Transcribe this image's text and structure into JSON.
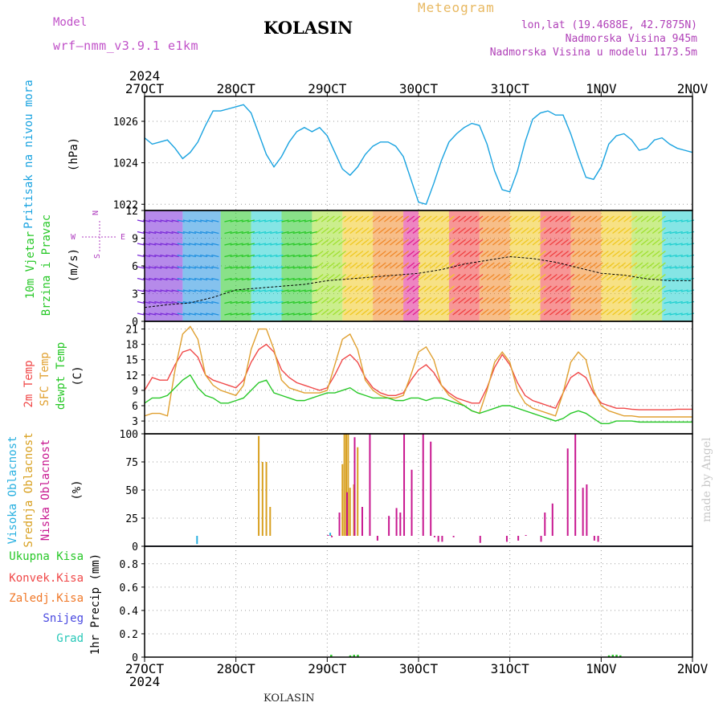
{
  "header": {
    "model_label": "Model",
    "model_name": "wrf–nmm_v3.9.1  e1km",
    "title": "KOLASIN",
    "meteogram_label": "Meteogram",
    "lonlat": "lon,lat (19.4688E, 42.7875N)",
    "elevation": "Nadmorska Visina 945m",
    "model_elevation": "Nadmorska Visina u modelu 1173.5m"
  },
  "footer": {
    "station": "KOLASIN"
  },
  "watermark": "made by Angel",
  "colors": {
    "pressure": "#1aa3e0",
    "temp2m": "#f04848",
    "sfc_temp": "#e0a030",
    "dewpoint": "#28c828",
    "high_cloud": "#28b0e0",
    "mid_cloud": "#d8a020",
    "low_cloud": "#c81890",
    "precip_total": "#28c828"
  },
  "chart_data": [
    {
      "type": "line",
      "panel": "pressure",
      "ylabel_left": "Pritisak na nivou mora",
      "ylabel_unit": "(hPa)",
      "y_ticks": [
        "1026",
        "1024",
        "1022"
      ],
      "ylim": [
        1021.7,
        1027.2
      ],
      "x_year": "2024",
      "x_ticks": [
        "27OCT",
        "28OCT",
        "29OCT",
        "30OCT",
        "31OCT",
        "1NOV",
        "2NOV"
      ],
      "x_range_hours": [
        0,
        144
      ],
      "grid": true,
      "series": [
        {
          "x": [
            0,
            2,
            4,
            6,
            8,
            10,
            12,
            14,
            16,
            18,
            20,
            22,
            24,
            26,
            28,
            30,
            32,
            34,
            36,
            38,
            40,
            42,
            44,
            46,
            48,
            50,
            52,
            54,
            56,
            58,
            60,
            62,
            64,
            66,
            68,
            70,
            72,
            74,
            76,
            78,
            80,
            82,
            84,
            86,
            88,
            90,
            92,
            94,
            96,
            98,
            100,
            102,
            104,
            106,
            108,
            110,
            112,
            114,
            116,
            118,
            120,
            122,
            124,
            126,
            128,
            130,
            132,
            134,
            136,
            138,
            140,
            142,
            144
          ],
          "values": [
            1025.2,
            1024.9,
            1025.0,
            1025.1,
            1024.7,
            1024.2,
            1024.5,
            1025.0,
            1025.8,
            1026.5,
            1026.5,
            1026.6,
            1026.7,
            1026.8,
            1026.4,
            1025.4,
            1024.4,
            1023.8,
            1024.3,
            1025.0,
            1025.5,
            1025.7,
            1025.5,
            1025.7,
            1025.3,
            1024.5,
            1023.7,
            1023.4,
            1023.8,
            1024.4,
            1024.8,
            1025.0,
            1025.0,
            1024.8,
            1024.3,
            1023.2,
            1022.1,
            1022.0,
            1023.0,
            1024.1,
            1025.0,
            1025.4,
            1025.7,
            1025.9,
            1025.8,
            1024.9,
            1023.6,
            1022.7,
            1022.6,
            1023.6,
            1025.0,
            1026.1,
            1026.4,
            1026.5,
            1026.3,
            1026.3,
            1025.4,
            1024.3,
            1023.3,
            1023.2,
            1023.8,
            1024.9,
            1025.3,
            1025.4,
            1025.1,
            1024.6,
            1024.7,
            1025.1,
            1025.2,
            1024.9,
            1024.7,
            1024.6,
            1024.5
          ]
        }
      ]
    },
    {
      "type": "line",
      "panel": "wind",
      "ylabel_left": [
        "10m Vjetar",
        "Brzina i Pravac"
      ],
      "ylabel_unit": "(m/s)",
      "compass_labels": [
        "N",
        "W",
        "E",
        "S"
      ],
      "y_ticks": [
        "12",
        "9",
        "6",
        "3",
        "0"
      ],
      "ylim": [
        0,
        12
      ],
      "grid": true,
      "series": [
        {
          "name": "speed",
          "x": [
            0,
            6,
            12,
            18,
            24,
            30,
            36,
            42,
            48,
            54,
            60,
            66,
            72,
            78,
            84,
            90,
            96,
            102,
            108,
            114,
            120,
            126,
            132,
            138,
            144
          ],
          "values": [
            1.5,
            1.8,
            2.0,
            2.6,
            3.4,
            3.6,
            3.8,
            4.0,
            4.4,
            4.6,
            4.8,
            5.0,
            5.2,
            5.6,
            6.2,
            6.6,
            7.0,
            6.8,
            6.4,
            5.8,
            5.2,
            5.0,
            4.6,
            4.4,
            4.4
          ]
        }
      ],
      "direction_bands": {
        "colors": [
          "#7a2ad8",
          "#2090e0",
          "#20d0d0",
          "#28c828",
          "#a0e030",
          "#f0c820",
          "#f08828",
          "#f04040",
          "#e02090"
        ]
      }
    },
    {
      "type": "line",
      "panel": "temperature",
      "ylabel_left": [
        "2m Temp",
        "SFC Temp",
        "dewpt Temp"
      ],
      "ylabel_unit": "(C)",
      "y_ticks": [
        "21",
        "18",
        "15",
        "12",
        "9",
        "6",
        "3"
      ],
      "ylim": [
        0.5,
        22.5
      ],
      "grid": true,
      "series": [
        {
          "name": "2m Temp",
          "x": [
            0,
            2,
            4,
            6,
            8,
            10,
            12,
            14,
            16,
            18,
            20,
            22,
            24,
            26,
            28,
            30,
            32,
            34,
            36,
            38,
            40,
            42,
            44,
            46,
            48,
            50,
            52,
            54,
            56,
            58,
            60,
            62,
            64,
            66,
            68,
            70,
            72,
            74,
            76,
            78,
            80,
            82,
            84,
            86,
            88,
            90,
            92,
            94,
            96,
            98,
            100,
            102,
            104,
            106,
            108,
            110,
            112,
            114,
            116,
            118,
            120,
            122,
            124,
            126,
            128,
            130,
            132,
            134,
            136,
            138,
            140,
            142,
            144
          ],
          "values": [
            9.0,
            11.5,
            11.0,
            11.0,
            14.0,
            16.5,
            17.0,
            15.5,
            12.0,
            11.0,
            10.5,
            10.0,
            9.5,
            11.0,
            14.5,
            17.0,
            18.0,
            16.5,
            13.0,
            11.5,
            10.5,
            10.0,
            9.5,
            9.0,
            9.5,
            12.0,
            15.0,
            16.0,
            14.5,
            11.5,
            9.5,
            8.5,
            8.0,
            8.0,
            8.5,
            11.0,
            13.0,
            14.0,
            12.5,
            10.0,
            8.5,
            7.5,
            7.0,
            6.5,
            6.5,
            9.5,
            13.5,
            16.0,
            14.0,
            10.5,
            8.0,
            7.0,
            6.5,
            6.0,
            5.5,
            8.5,
            11.5,
            12.5,
            11.5,
            8.5,
            6.5,
            6.0,
            5.5,
            5.5,
            5.3,
            5.2,
            5.2,
            5.2,
            5.2,
            5.2,
            5.3,
            5.3,
            5.3
          ]
        },
        {
          "name": "SFC Temp",
          "x": [
            0,
            2,
            4,
            6,
            8,
            10,
            12,
            14,
            16,
            18,
            20,
            22,
            24,
            26,
            28,
            30,
            32,
            34,
            36,
            38,
            40,
            42,
            44,
            46,
            48,
            50,
            52,
            54,
            56,
            58,
            60,
            62,
            64,
            66,
            68,
            70,
            72,
            74,
            76,
            78,
            80,
            82,
            84,
            86,
            88,
            90,
            92,
            94,
            96,
            98,
            100,
            102,
            104,
            106,
            108,
            110,
            112,
            114,
            116,
            118,
            120,
            122,
            124,
            126,
            128,
            130,
            132,
            134,
            136,
            138,
            140,
            142,
            144
          ],
          "values": [
            4.0,
            4.5,
            4.5,
            4.0,
            13.0,
            20.0,
            21.5,
            19.0,
            12.0,
            10.0,
            9.0,
            8.5,
            8.0,
            10.0,
            17.0,
            21.0,
            21.0,
            17.0,
            11.0,
            9.5,
            9.0,
            8.5,
            8.5,
            8.5,
            9.0,
            14.0,
            19.0,
            20.0,
            17.0,
            11.0,
            9.0,
            8.0,
            7.5,
            7.5,
            8.0,
            12.0,
            16.5,
            17.5,
            15.0,
            10.0,
            8.0,
            7.0,
            6.0,
            5.0,
            4.5,
            9.0,
            14.5,
            16.5,
            14.5,
            9.0,
            6.5,
            5.5,
            5.0,
            4.5,
            4.0,
            8.5,
            14.5,
            16.5,
            15.0,
            9.0,
            6.0,
            5.0,
            4.5,
            4.0,
            4.0,
            3.8,
            3.8,
            3.8,
            3.8,
            3.8,
            3.8,
            3.8,
            3.8
          ]
        },
        {
          "name": "dewpt Temp",
          "x": [
            0,
            2,
            4,
            6,
            8,
            10,
            12,
            14,
            16,
            18,
            20,
            22,
            24,
            26,
            28,
            30,
            32,
            34,
            36,
            38,
            40,
            42,
            44,
            46,
            48,
            50,
            52,
            54,
            56,
            58,
            60,
            62,
            64,
            66,
            68,
            70,
            72,
            74,
            76,
            78,
            80,
            82,
            84,
            86,
            88,
            90,
            92,
            94,
            96,
            98,
            100,
            102,
            104,
            106,
            108,
            110,
            112,
            114,
            116,
            118,
            120,
            122,
            124,
            126,
            128,
            130,
            132,
            134,
            136,
            138,
            140,
            142,
            144
          ],
          "values": [
            6.5,
            7.5,
            7.5,
            8.0,
            9.5,
            11.0,
            12.0,
            9.5,
            8.0,
            7.5,
            6.5,
            6.5,
            7.0,
            7.5,
            9.0,
            10.5,
            11.0,
            8.5,
            8.0,
            7.5,
            7.0,
            7.0,
            7.5,
            8.0,
            8.5,
            8.5,
            9.0,
            9.5,
            8.5,
            8.0,
            7.5,
            7.5,
            7.5,
            7.0,
            7.0,
            7.5,
            7.5,
            7.0,
            7.5,
            7.5,
            7.0,
            6.5,
            6.0,
            5.0,
            4.5,
            5.0,
            5.5,
            6.0,
            6.0,
            5.5,
            5.0,
            4.5,
            4.0,
            3.5,
            3.0,
            3.5,
            4.5,
            5.0,
            4.5,
            3.5,
            2.5,
            2.5,
            3.0,
            3.0,
            3.0,
            2.8,
            2.8,
            2.8,
            2.8,
            2.8,
            2.8,
            2.8,
            2.8
          ]
        }
      ]
    },
    {
      "type": "bar",
      "panel": "cloud",
      "ylabel_left": [
        "Visoka Oblacnost",
        "Srednja Oblacnost",
        "Niska Oblacnost"
      ],
      "ylabel_unit": "(%)",
      "y_ticks": [
        "100",
        "75",
        "50",
        "25",
        "0"
      ],
      "ylim": [
        0,
        100
      ],
      "grid": true,
      "series": [
        {
          "name": "Srednja Oblacnost",
          "x": [
            30,
            31,
            32,
            33,
            49,
            52,
            52.5,
            53,
            53.5,
            54,
            55,
            56
          ],
          "values": [
            98,
            75,
            75,
            35,
            10,
            73,
            100,
            100,
            100,
            52,
            55,
            88
          ]
        },
        {
          "name": "Niska Oblacnost",
          "x": [
            48,
            49,
            51,
            53,
            55,
            57,
            59,
            61,
            64,
            66,
            67,
            68,
            70,
            73,
            75,
            76,
            77,
            78,
            81,
            88,
            95,
            98,
            100,
            104,
            105,
            107,
            111,
            113,
            115,
            116,
            118,
            119
          ],
          "values": [
            10,
            8,
            30,
            48,
            97,
            35,
            100,
            5,
            27,
            34,
            30,
            100,
            68,
            100,
            93,
            8,
            4,
            4,
            8,
            3,
            4,
            5,
            10,
            4,
            30,
            38,
            87,
            100,
            52,
            55,
            5,
            4
          ]
        },
        {
          "name": "Visoka Oblacnost",
          "x": [
            14,
            49
          ],
          "values": [
            2,
            12
          ]
        }
      ]
    },
    {
      "type": "bar",
      "panel": "precip",
      "ylabel_left": [
        "Ukupna Kisa",
        "Konvek.Kisa",
        "Zaledj.Kisa",
        "Snijeg",
        "Grad"
      ],
      "ylabel_unit": "1hr Precip (mm)",
      "y_ticks": [
        "0.8",
        "0.6",
        "0.4",
        "0.2",
        "0"
      ],
      "ylim": [
        0,
        0.95
      ],
      "grid": true,
      "series": [
        {
          "name": "Ukupna Kisa",
          "x": [
            49,
            54,
            55,
            56,
            122,
            123,
            124,
            125
          ],
          "values": [
            0.02,
            0.015,
            0.02,
            0.02,
            0.015,
            0.02,
            0.02,
            0.015
          ]
        }
      ]
    }
  ]
}
